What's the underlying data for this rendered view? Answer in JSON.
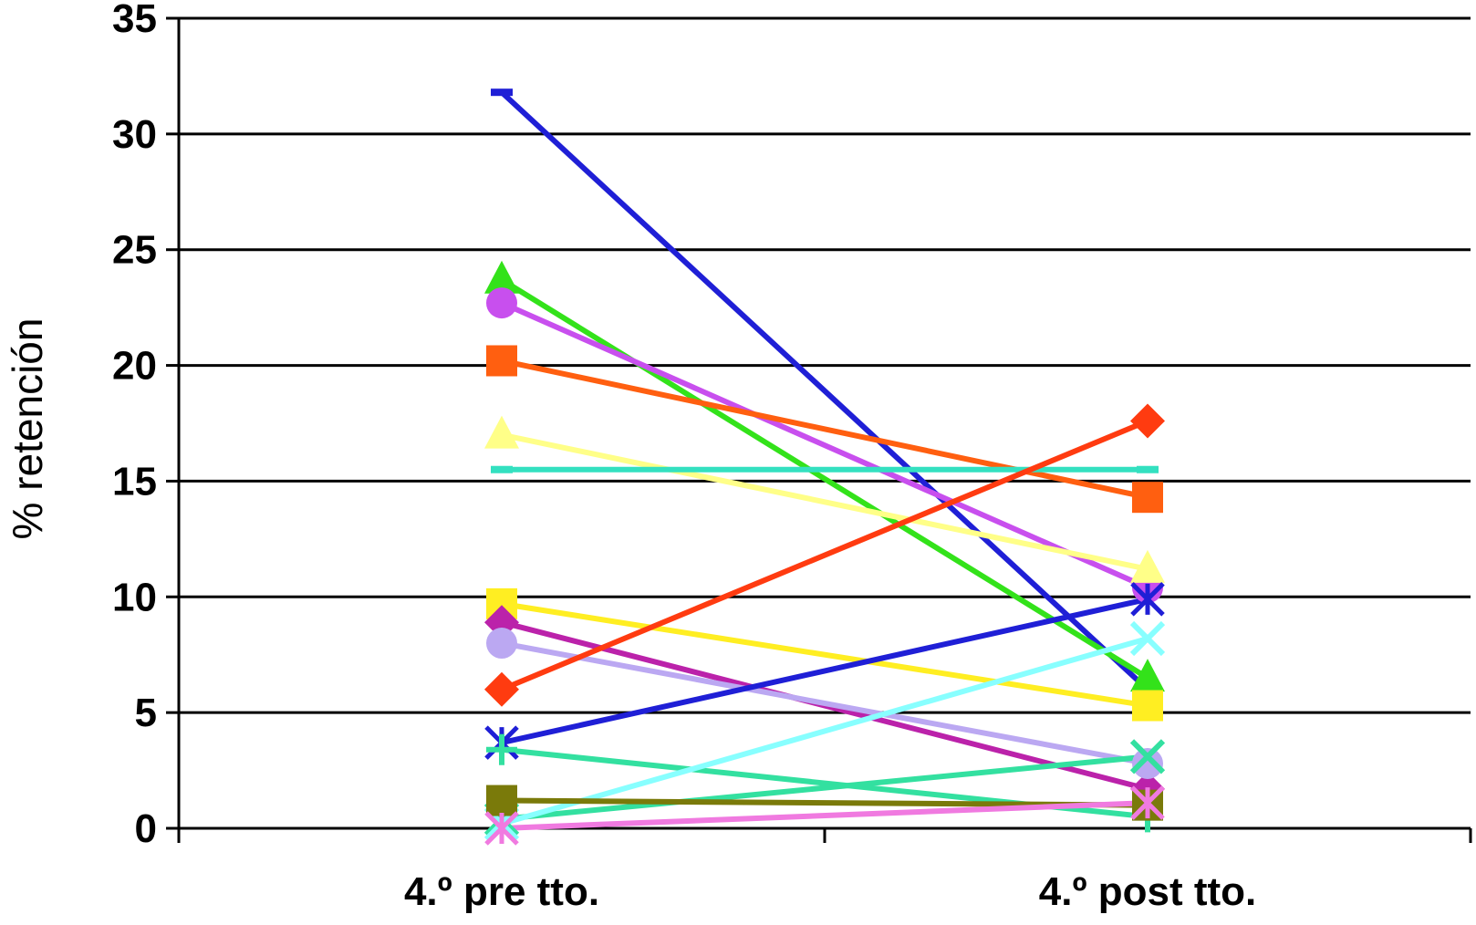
{
  "chart_data": {
    "type": "line",
    "title": "",
    "xlabel": "",
    "ylabel": "% retención",
    "categories": [
      "4.º pre tto.",
      "4.º post tto."
    ],
    "ylim": [
      0,
      35
    ],
    "yticks": [
      0,
      5,
      10,
      15,
      20,
      25,
      30,
      35
    ],
    "grid": true,
    "series": [
      {
        "values": [
          31.8,
          6.0
        ],
        "color": "#1f1fd6",
        "marker": "dash"
      },
      {
        "values": [
          23.7,
          6.5
        ],
        "color": "#33e21a",
        "marker": "triangle"
      },
      {
        "values": [
          22.7,
          10.4
        ],
        "color": "#c84fee",
        "marker": "circle"
      },
      {
        "values": [
          20.2,
          14.3
        ],
        "color": "#ff5f10",
        "marker": "square"
      },
      {
        "values": [
          17.0,
          11.2
        ],
        "color": "#ffff88",
        "marker": "triangle"
      },
      {
        "values": [
          15.5,
          15.5
        ],
        "color": "#33e0c0",
        "marker": "dash"
      },
      {
        "values": [
          9.7,
          5.3
        ],
        "color": "#ffee22",
        "marker": "square"
      },
      {
        "values": [
          8.9,
          1.7
        ],
        "color": "#bb22aa",
        "marker": "diamond"
      },
      {
        "values": [
          8.0,
          2.8
        ],
        "color": "#bba8f2",
        "marker": "circle"
      },
      {
        "values": [
          6.0,
          17.6
        ],
        "color": "#ff3b10",
        "marker": "diamond"
      },
      {
        "values": [
          3.7,
          9.9
        ],
        "color": "#1f1fd6",
        "marker": "asterisk"
      },
      {
        "values": [
          3.4,
          0.5
        ],
        "color": "#33e0a0",
        "marker": "plus"
      },
      {
        "values": [
          0.4,
          3.1
        ],
        "color": "#33e0a0",
        "marker": "x"
      },
      {
        "values": [
          0.2,
          8.2
        ],
        "color": "#88ffff",
        "marker": "x"
      },
      {
        "values": [
          1.2,
          1.0
        ],
        "color": "#7a7a0a",
        "marker": "square"
      },
      {
        "values": [
          0.0,
          1.1
        ],
        "color": "#f07ae0",
        "marker": "asterisk"
      }
    ]
  }
}
